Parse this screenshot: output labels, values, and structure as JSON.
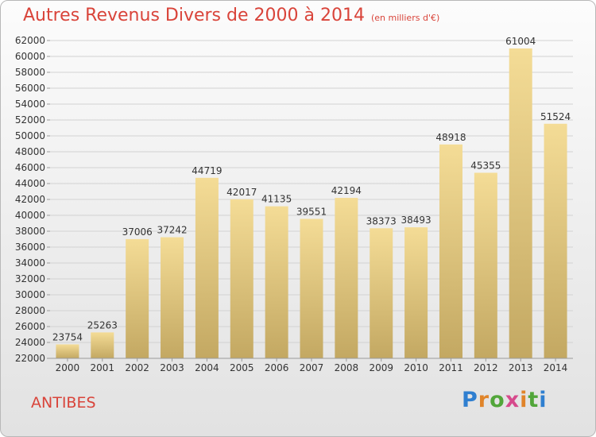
{
  "header": {
    "title": "Autres Revenus Divers de 2000 à 2014",
    "unit": "(en milliers d'€)"
  },
  "footer": {
    "city": "ANTIBES",
    "logo": "Proxiti"
  },
  "colors": {
    "title": "#d9443a",
    "bar_light": "#f4dc96",
    "bar_dark": "#c3a862",
    "grid": "#d2d2d2"
  },
  "chart_data": {
    "type": "bar",
    "title": "Autres Revenus Divers de 2000 à 2014",
    "subtitle": "(en milliers d'€)",
    "xlabel": "",
    "ylabel": "",
    "categories": [
      "2000",
      "2001",
      "2002",
      "2003",
      "2004",
      "2005",
      "2006",
      "2007",
      "2008",
      "2009",
      "2010",
      "2011",
      "2012",
      "2013",
      "2014"
    ],
    "values": [
      23754,
      25263,
      37006,
      37242,
      44719,
      42017,
      41135,
      39551,
      42194,
      38373,
      38493,
      48918,
      45355,
      61004,
      51524
    ],
    "data_labels": [
      "23754",
      "25263",
      "37006",
      "37242",
      "44719",
      "42017",
      "41135",
      "39551",
      "42194",
      "38373",
      "38493",
      "48918",
      "45355",
      "61004",
      "51524"
    ],
    "ylim": [
      22000,
      62000
    ],
    "yticks": [
      22000,
      24000,
      26000,
      28000,
      30000,
      32000,
      34000,
      36000,
      38000,
      40000,
      42000,
      44000,
      46000,
      48000,
      50000,
      52000,
      54000,
      56000,
      58000,
      60000,
      62000
    ],
    "ytick_labels": [
      "22000",
      "24000",
      "26000",
      "28000",
      "30000",
      "32000",
      "34000",
      "36000",
      "38000",
      "40000",
      "42000",
      "44000",
      "46000",
      "48000",
      "50000",
      "52000",
      "54000",
      "56000",
      "58000",
      "60000",
      "62000"
    ],
    "grid": true,
    "legend": "none"
  }
}
